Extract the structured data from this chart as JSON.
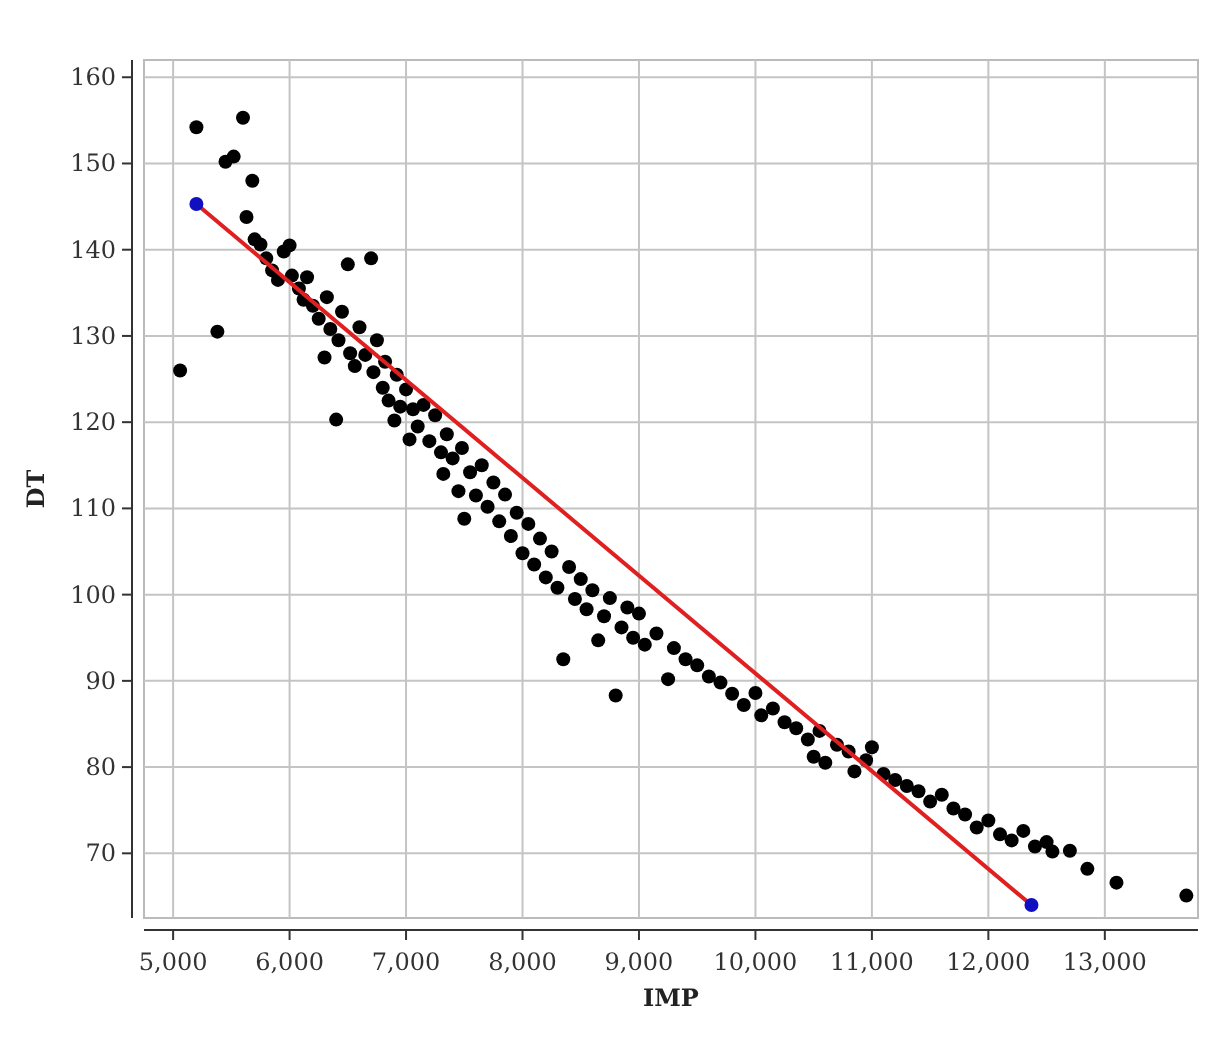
{
  "chart_data": {
    "type": "scatter",
    "xlabel": "IMP",
    "ylabel": "DT",
    "xlim": [
      4750,
      13800
    ],
    "ylim": [
      62.5,
      162
    ],
    "xticks": [
      {
        "value": 5000,
        "label": "5,000"
      },
      {
        "value": 6000,
        "label": "6,000"
      },
      {
        "value": 7000,
        "label": "7,000"
      },
      {
        "value": 8000,
        "label": "8,000"
      },
      {
        "value": 9000,
        "label": "9,000"
      },
      {
        "value": 10000,
        "label": "10,000"
      },
      {
        "value": 11000,
        "label": "11,000"
      },
      {
        "value": 12000,
        "label": "12,000"
      },
      {
        "value": 13000,
        "label": "13,000"
      }
    ],
    "yticks": [
      70,
      80,
      90,
      100,
      110,
      120,
      130,
      140,
      150,
      160
    ],
    "grid": true,
    "marker": "circle",
    "series": [
      {
        "color": "#000000",
        "x": [
          5060,
          5200,
          5380,
          5450,
          5520,
          5600,
          5630,
          5680,
          5700,
          5750,
          5800,
          5850,
          5900,
          5950,
          6000,
          6020,
          6080,
          6120,
          6150,
          6200,
          6250,
          6300,
          6320,
          6350,
          6400,
          6420,
          6450,
          6500,
          6520,
          6560,
          6600,
          6650,
          6700,
          6720,
          6750,
          6800,
          6820,
          6850,
          6900,
          6920,
          6950,
          7000,
          7030,
          7060,
          7100,
          7150,
          7200,
          7250,
          7300,
          7320,
          7350,
          7400,
          7450,
          7480,
          7500,
          7550,
          7600,
          7650,
          7700,
          7750,
          7800,
          7850,
          7900,
          7950,
          8000,
          8050,
          8100,
          8150,
          8200,
          8250,
          8300,
          8350,
          8400,
          8450,
          8500,
          8550,
          8600,
          8650,
          8700,
          8750,
          8800,
          8850,
          8900,
          8950,
          9000,
          9050,
          9150,
          9250,
          9300,
          9400,
          9500,
          9600,
          9700,
          9800,
          9900,
          10000,
          10050,
          10150,
          10250,
          10350,
          10450,
          10500,
          10550,
          10600,
          10700,
          10800,
          10850,
          10950,
          11000,
          11100,
          11200,
          11300,
          11400,
          11500,
          11600,
          11700,
          11800,
          11900,
          12000,
          12100,
          12200,
          12300,
          12400,
          12500,
          12550,
          12700,
          12850,
          13100,
          13700
        ],
        "values": [
          126,
          154.2,
          130.5,
          150.2,
          150.8,
          155.3,
          143.8,
          148,
          141.2,
          140.6,
          139,
          137.6,
          136.5,
          139.8,
          140.5,
          137,
          135.5,
          134.2,
          136.8,
          133.5,
          132,
          127.5,
          134.5,
          130.8,
          120.3,
          129.5,
          132.8,
          138.3,
          128,
          126.5,
          131,
          127.8,
          139,
          125.8,
          129.5,
          124,
          127,
          122.5,
          120.2,
          125.5,
          121.8,
          123.8,
          118,
          121.5,
          119.5,
          122,
          117.8,
          120.8,
          116.5,
          114,
          118.6,
          115.8,
          112,
          117,
          108.8,
          114.2,
          111.5,
          115,
          110.2,
          113,
          108.5,
          111.6,
          106.8,
          109.5,
          104.8,
          108.2,
          103.5,
          106.5,
          102,
          105,
          100.8,
          92.5,
          103.2,
          99.5,
          101.8,
          98.3,
          100.5,
          94.7,
          97.5,
          99.6,
          88.3,
          96.2,
          98.5,
          95,
          97.8,
          94.2,
          95.5,
          90.2,
          93.8,
          92.5,
          91.8,
          90.5,
          89.8,
          88.5,
          87.2,
          88.6,
          86,
          86.8,
          85.2,
          84.5,
          83.2,
          81.2,
          84.2,
          80.5,
          82.6,
          81.8,
          79.5,
          80.8,
          82.3,
          79.2,
          78.5,
          77.8,
          77.2,
          76,
          76.8,
          75.2,
          74.5,
          73,
          73.8,
          72.2,
          71.5,
          72.6,
          70.8,
          71.3,
          70.2,
          70.3,
          68.2,
          66.6,
          65.1
        ]
      },
      {
        "type": "line",
        "color": "#e02020",
        "marker": "none",
        "x": [
          5200,
          12370
        ],
        "values": [
          145.3,
          64
        ]
      },
      {
        "color": "#1010c0",
        "x": [
          5200,
          12370
        ],
        "values": [
          145.3,
          64
        ]
      }
    ]
  }
}
